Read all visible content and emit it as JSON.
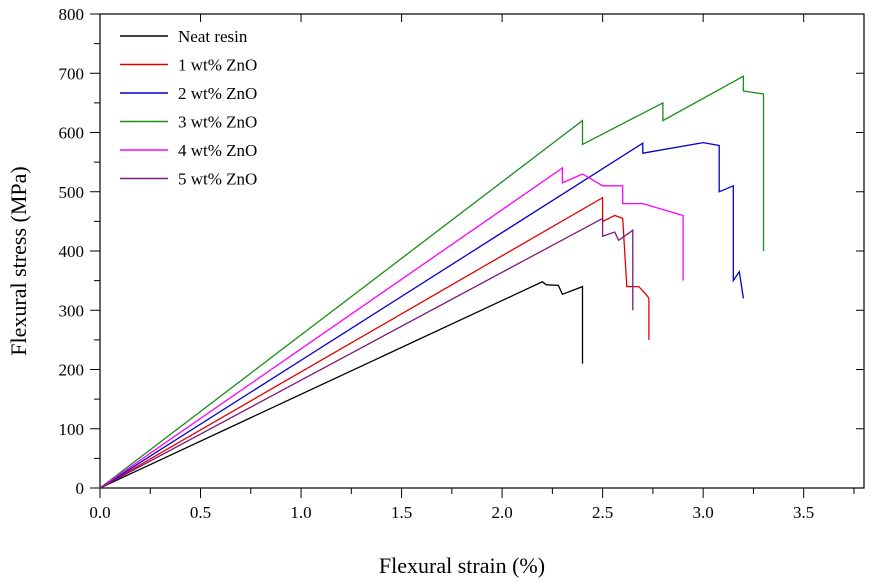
{
  "chart_data": {
    "type": "line",
    "title": "",
    "xlabel": "Flexural strain (%)",
    "ylabel": "Flexural stress (MPa)",
    "xlim": [
      0,
      3.8
    ],
    "ylim": [
      0,
      800
    ],
    "xticks": [
      0.0,
      0.5,
      1.0,
      1.5,
      2.0,
      2.5,
      3.0,
      3.5
    ],
    "xtick_labels": [
      "0.0",
      "0.5",
      "1.0",
      "1.5",
      "2.0",
      "2.5",
      "3.0",
      "3.5"
    ],
    "yticks": [
      0,
      100,
      200,
      300,
      400,
      500,
      600,
      700,
      800
    ],
    "ytick_labels": [
      "0",
      "100",
      "200",
      "300",
      "400",
      "500",
      "600",
      "700",
      "800"
    ],
    "grid": false,
    "legend_position": "top-left",
    "series": [
      {
        "name": "Neat resin",
        "color": "#000000",
        "x": [
          0,
          2.2,
          2.22,
          2.28,
          2.3,
          2.4,
          2.4
        ],
        "y": [
          0,
          348,
          343,
          342,
          327,
          340,
          210
        ]
      },
      {
        "name": "1 wt% ZnO",
        "color": "#e00000",
        "x": [
          0,
          2.5,
          2.5,
          2.56,
          2.6,
          2.62,
          2.62,
          2.68,
          2.72,
          2.73,
          2.73
        ],
        "y": [
          0,
          490,
          450,
          460,
          455,
          340,
          340,
          340,
          325,
          320,
          250
        ]
      },
      {
        "name": "2 wt% ZnO",
        "color": "#0000cc",
        "x": [
          0,
          2.7,
          2.7,
          3.0,
          3.08,
          3.08,
          3.15,
          3.15,
          3.18,
          3.2
        ],
        "y": [
          0,
          582,
          565,
          583,
          578,
          500,
          510,
          350,
          365,
          320
        ]
      },
      {
        "name": "3 wt% ZnO",
        "color": "#1a8c1a",
        "x": [
          0,
          2.4,
          2.4,
          2.8,
          2.8,
          3.2,
          3.2,
          3.3,
          3.3
        ],
        "y": [
          0,
          620,
          580,
          650,
          620,
          695,
          670,
          665,
          400
        ]
      },
      {
        "name": "4 wt% ZnO",
        "color": "#ff00ff",
        "x": [
          0,
          2.3,
          2.3,
          2.4,
          2.5,
          2.6,
          2.6,
          2.7,
          2.9,
          2.9
        ],
        "y": [
          0,
          540,
          515,
          530,
          510,
          510,
          480,
          480,
          460,
          350
        ]
      },
      {
        "name": "5 wt% ZnO",
        "color": "#7a1a7a",
        "x": [
          0,
          2.5,
          2.5,
          2.56,
          2.58,
          2.65,
          2.65
        ],
        "y": [
          0,
          455,
          425,
          432,
          418,
          435,
          300
        ]
      }
    ]
  }
}
